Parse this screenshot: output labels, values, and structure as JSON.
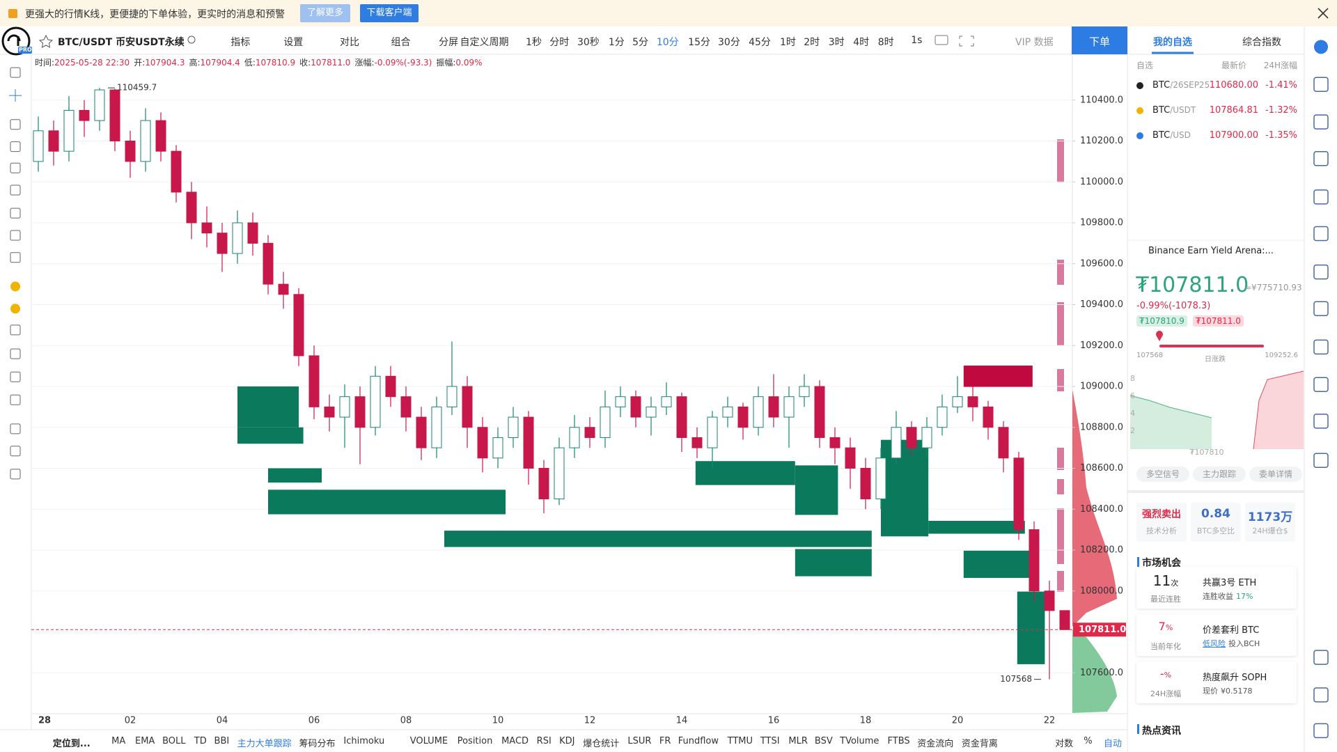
{
  "banner": {
    "text": "更强大的行情K线，更便捷的下单体验，更实时的消息和预警",
    "learn_more": "了解更多",
    "download": "下载客户端"
  },
  "logo": "PRO",
  "toolbar": {
    "symbol": "BTC/USDT 币安USDT永续",
    "tools": [
      "指标",
      "设置",
      "对比",
      "组合",
      "分屏"
    ],
    "custom_period": "自定义周期",
    "periods": [
      "1秒",
      "分时",
      "30秒",
      "1分",
      "5分",
      "10分",
      "15分",
      "30分",
      "45分",
      "1时",
      "2时",
      "3时",
      "4时",
      "8时"
    ],
    "interval": "1s",
    "vip": "VIP 数据",
    "order": "下单"
  },
  "info": [
    {
      "label": "时间:",
      "value": "2025-05-28 22:30"
    },
    {
      "label": "开:",
      "value": "107904.3"
    },
    {
      "label": "高:",
      "value": "107904.4"
    },
    {
      "label": "低:",
      "value": "107810.9"
    },
    {
      "label": "收:",
      "value": "107811.0"
    },
    {
      "label": "涨幅:",
      "value": "-0.09%(-93.3)"
    },
    {
      "label": "振幅:",
      "value": "0.09%"
    }
  ],
  "chart_data": {
    "type": "candlestick",
    "categories": [
      "28",
      null,
      null,
      null,
      null,
      null,
      "02",
      null,
      null,
      null,
      null,
      null,
      "04",
      null,
      null,
      null,
      null,
      null,
      "06",
      null,
      null,
      null,
      null,
      null,
      "08",
      null,
      null,
      null,
      null,
      null,
      "10",
      null,
      null,
      null,
      null,
      null,
      "12",
      null,
      null,
      null,
      null,
      null,
      "14",
      null,
      null,
      null,
      null,
      null,
      "16",
      null,
      null,
      null,
      null,
      null,
      "18",
      null,
      null,
      null,
      null,
      null,
      "20",
      null,
      null,
      null,
      null,
      null,
      "22",
      null
    ],
    "open": [
      110100,
      110250,
      110150,
      110350,
      110300,
      110450,
      110200,
      110100,
      110300,
      110150,
      109950,
      109800,
      109750,
      109650,
      109800,
      109700,
      109500,
      109450,
      109150,
      108900,
      108850,
      108950,
      108800,
      109050,
      108950,
      108850,
      108700,
      108900,
      109000,
      108800,
      108650,
      108750,
      108850,
      108600,
      108450,
      108700,
      108800,
      108750,
      108900,
      108950,
      108850,
      108900,
      108950,
      108750,
      108700,
      108850,
      108900,
      108800,
      108950,
      108850,
      108950,
      109000,
      108750,
      108700,
      108600,
      108450,
      108650,
      108800,
      108700,
      108800,
      108900,
      108950,
      108900,
      108800,
      108650,
      108300,
      108000,
      107904.3
    ],
    "high": [
      110320,
      110300,
      110420,
      110400,
      110459.7,
      110455,
      110250,
      110360,
      110340,
      110180,
      110000,
      109880,
      109800,
      109860,
      109850,
      109740,
      109560,
      109480,
      109200,
      108960,
      109010,
      109000,
      109100,
      109100,
      109000,
      108900,
      108950,
      109220,
      109050,
      108850,
      108800,
      108900,
      108880,
      108640,
      108750,
      108860,
      108850,
      108980,
      109000,
      108980,
      108950,
      109020,
      108970,
      108800,
      108880,
      108950,
      108920,
      109000,
      109060,
      109000,
      109060,
      109030,
      108800,
      108750,
      108650,
      108700,
      108880,
      108830,
      108850,
      108960,
      109050,
      109000,
      108930,
      108830,
      108680,
      108340,
      108050,
      107904.4
    ],
    "low": [
      110050,
      110080,
      110100,
      110220,
      110250,
      110150,
      110020,
      110050,
      110100,
      109900,
      109720,
      109680,
      109560,
      109600,
      109640,
      109450,
      109380,
      109100,
      108840,
      108780,
      108700,
      108620,
      108760,
      108900,
      108780,
      108640,
      108650,
      108860,
      108700,
      108580,
      108600,
      108700,
      108520,
      108380,
      108420,
      108650,
      108700,
      108700,
      108850,
      108800,
      108760,
      108860,
      108680,
      108650,
      108600,
      108800,
      108740,
      108760,
      108800,
      108700,
      108900,
      108700,
      108620,
      108500,
      108400,
      108400,
      108620,
      108660,
      108650,
      108760,
      108870,
      108830,
      108740,
      108580,
      108250,
      107950,
      107568,
      107810.9
    ],
    "close": [
      110250,
      110150,
      110350,
      110300,
      110450,
      110200,
      110100,
      110300,
      110150,
      109950,
      109800,
      109750,
      109650,
      109800,
      109700,
      109500,
      109450,
      109150,
      108900,
      108850,
      108950,
      108800,
      109050,
      108950,
      108850,
      108700,
      108900,
      109000,
      108800,
      108650,
      108750,
      108850,
      108600,
      108450,
      108700,
      108800,
      108750,
      108900,
      108950,
      108850,
      108900,
      108950,
      108750,
      108700,
      108850,
      108900,
      108800,
      108950,
      108850,
      108950,
      109000,
      108750,
      108700,
      108600,
      108450,
      108650,
      108800,
      108700,
      108800,
      108900,
      108950,
      108900,
      108800,
      108650,
      108300,
      108000,
      107904.3,
      107811.0
    ],
    "up_color": "#17866a",
    "down_color": "#c8174a",
    "order_blocks": [
      {
        "start": 13,
        "end": 17,
        "low": 108800,
        "high": 109000,
        "color": "#0b7a5c"
      },
      {
        "start": 13,
        "end": 17.3,
        "low": 108720,
        "high": 108800,
        "color": "#0b7a5c"
      },
      {
        "start": 15,
        "end": 18.5,
        "low": 108530,
        "high": 108600,
        "color": "#0b7a5c"
      },
      {
        "start": 15,
        "end": 30.5,
        "low": 108375,
        "high": 108495,
        "color": "#0b7a5c"
      },
      {
        "start": 26.5,
        "end": 54.4,
        "low": 108215,
        "high": 108295,
        "color": "#0b7a5c"
      },
      {
        "start": 42.9,
        "end": 49.4,
        "low": 108518,
        "high": 108635,
        "color": "#0b7a5c"
      },
      {
        "start": 49.4,
        "end": 52.2,
        "low": 108372,
        "high": 108614,
        "color": "#0b7a5c"
      },
      {
        "start": 49.4,
        "end": 54.4,
        "low": 108072,
        "high": 108205,
        "color": "#0b7a5c"
      },
      {
        "start": 55,
        "end": 58.1,
        "low": 108267,
        "high": 108739,
        "color": "#0b7a5c"
      },
      {
        "start": 58.1,
        "end": 64.4,
        "low": 108280,
        "high": 108343,
        "color": "#0b7a5c"
      },
      {
        "start": 60.4,
        "end": 64.9,
        "low": 108064,
        "high": 108197,
        "color": "#0b7a5c"
      },
      {
        "start": 60.4,
        "end": 64.9,
        "low": 108998,
        "high": 109102,
        "color": "#c0093e"
      },
      {
        "start": 63.9,
        "end": 65.7,
        "low": 107642,
        "high": 107997,
        "color": "#0b7a5c"
      }
    ],
    "last_price_label": "107811.0",
    "ylim": [
      107400,
      110600
    ],
    "yticks": [
      {
        "value": 110400,
        "label": "110400.0"
      },
      {
        "value": 110200,
        "label": "110200.0"
      },
      {
        "value": 110000,
        "label": "110000.0"
      },
      {
        "value": 109800,
        "label": "109800.0"
      },
      {
        "value": 109600,
        "label": "109600.0"
      },
      {
        "value": 109400,
        "label": "109400.0"
      },
      {
        "value": 109200,
        "label": "109200.0"
      },
      {
        "value": 109000,
        "label": "109000.0"
      },
      {
        "value": 108800,
        "label": "108800.0"
      },
      {
        "value": 108600,
        "label": "108600.0"
      },
      {
        "value": 108400,
        "label": "108400.0"
      },
      {
        "value": 108200,
        "label": "108200.0"
      },
      {
        "value": 108000,
        "label": "108000.0"
      },
      {
        "value": 107800,
        "label": "107800.0"
      },
      {
        "value": 107600,
        "label": "107600.0"
      }
    ],
    "grid": true
  },
  "watchlist": {
    "tabs": [
      "我的自选",
      "综合指数"
    ],
    "filter": "自选",
    "price_col": "最新价",
    "change_col": "24H涨幅",
    "rows": [
      {
        "base": "BTC",
        "quote": "/26SEP25",
        "price": "110680.00",
        "change": "-1.41%"
      },
      {
        "base": "BTC",
        "quote": "/USDT",
        "price": "107864.81",
        "change": "-1.32%"
      },
      {
        "base": "BTC",
        "quote": "/USD",
        "price": "107900.00",
        "change": "-1.35%"
      }
    ]
  },
  "ticker": {
    "news": "Binance Earn Yield Arena:...",
    "price": "₮107811.0",
    "cny": "≈¥775710.93",
    "change": "-0.99%(-1078.3)",
    "bid": "₮107810.9",
    "ask": "₮107811.0",
    "low": "107568",
    "range_label": "日涨跌",
    "high": "109252.6",
    "depth_ticks": [
      "8",
      "6",
      "4",
      "2"
    ],
    "depth_price": "₮107810",
    "buttons": [
      "多空信号",
      "主力跟踪",
      "委单详情"
    ]
  },
  "stats": [
    {
      "value": "强烈卖出",
      "label": "技术分析"
    },
    {
      "value": "0.84",
      "label": "BTC多空比"
    },
    {
      "value": "1173万",
      "label": "24H爆仓$"
    }
  ],
  "opportunities": {
    "title": "市场机会",
    "items": [
      {
        "value": "11",
        "unit": "次",
        "label": "最近连胜",
        "name": "共赢3号 ETH",
        "detail": "连胜收益",
        "extra": "17%"
      },
      {
        "value": "7",
        "unit": "%",
        "label": "当前年化",
        "name": "价差套利 BTC",
        "detail": "低风险",
        "extra": "投入BCH"
      },
      {
        "value": "-",
        "unit": "%",
        "label": "24H涨幅",
        "name": "热度飙升 SOPH",
        "detail": "现价",
        "extra": "¥0.5178"
      }
    ]
  },
  "news_title": "热点资讯",
  "bottom": {
    "locate": "定位到...",
    "indicators": [
      "MA",
      "EMA",
      "BOLL",
      "TD",
      "BBI",
      "主力大单跟踪",
      "筹码分布",
      "Ichimoku",
      "VOLUME",
      "Position",
      "MACD",
      "RSI",
      "KDJ",
      "爆仓统计",
      "LSUR",
      "FR",
      "Fundflow",
      "TTMU",
      "TTSI",
      "MLR",
      "BSV",
      "TVolume",
      "FTBS",
      "资金流向",
      "资金背离"
    ],
    "controls": [
      "对数",
      "%",
      "自动"
    ]
  }
}
